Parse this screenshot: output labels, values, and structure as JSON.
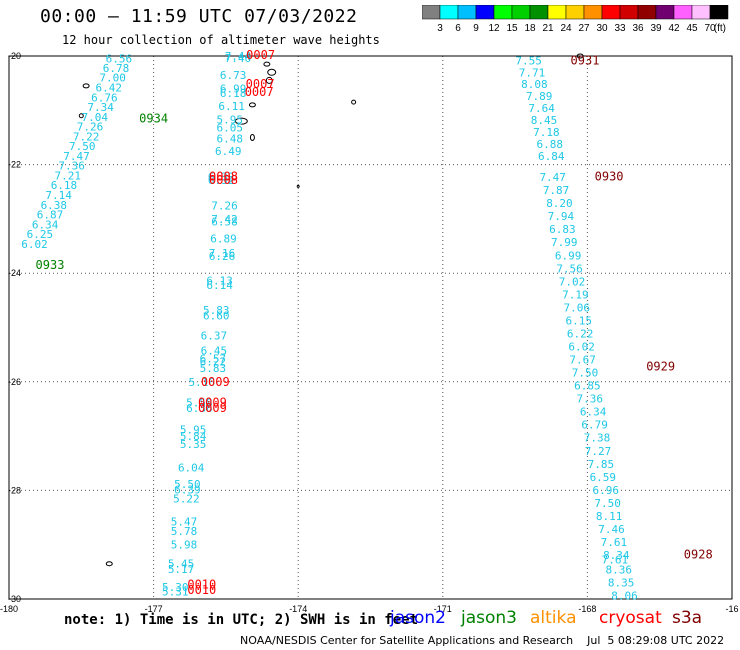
{
  "header": {
    "title": "00:00 – 11:59 UTC 07/03/2022",
    "subtitle": "12 hour collection of altimeter wave heights"
  },
  "colorbar": {
    "unit_label": "(ft)",
    "entries": [
      {
        "color": "#808080",
        "label": "3"
      },
      {
        "color": "#00ffff",
        "label": "6"
      },
      {
        "color": "#00bfff",
        "label": "9"
      },
      {
        "color": "#0000ff",
        "label": "12"
      },
      {
        "color": "#00ff00",
        "label": "15"
      },
      {
        "color": "#00d000",
        "label": "18"
      },
      {
        "color": "#009000",
        "label": "21"
      },
      {
        "color": "#ffff00",
        "label": "24"
      },
      {
        "color": "#ffd000",
        "label": "27"
      },
      {
        "color": "#ff9000",
        "label": "30"
      },
      {
        "color": "#ff0000",
        "label": "33"
      },
      {
        "color": "#d00000",
        "label": "36"
      },
      {
        "color": "#900000",
        "label": "39"
      },
      {
        "color": "#700070",
        "label": "42"
      },
      {
        "color": "#ff60ff",
        "label": "45"
      },
      {
        "color": "#ffc0ff",
        "label": "70"
      },
      {
        "color": "#000000",
        "label": ""
      }
    ]
  },
  "map": {
    "lon_ticks": [
      "-180",
      "-177",
      "-174",
      "-171",
      "-168",
      "-16"
    ],
    "lat_ticks": [
      "-20",
      "-22",
      "-24",
      "-26",
      "-28",
      "-30"
    ],
    "lon_range": [
      -180,
      -165
    ],
    "lat_range": [
      -30,
      -20
    ],
    "gridline_style": "dotted",
    "value_color": "#1ec8e6",
    "tracks": [
      {
        "satellite": "jason3",
        "label_color": "#008000",
        "time_labels": [
          {
            "text": "0934",
            "lon": -177.0,
            "lat": -21.15
          },
          {
            "text": "0933",
            "lon": -179.15,
            "lat": -23.85
          }
        ],
        "points": [
          {
            "text": "6.56",
            "lon": -177.72,
            "lat": -20.05
          },
          {
            "text": "6.78",
            "lon": -177.78,
            "lat": -20.22
          },
          {
            "text": "7.00",
            "lon": -177.85,
            "lat": -20.4
          },
          {
            "text": "6.42",
            "lon": -177.93,
            "lat": -20.58
          },
          {
            "text": "6.76",
            "lon": -178.02,
            "lat": -20.76
          },
          {
            "text": "7.34",
            "lon": -178.1,
            "lat": -20.94
          },
          {
            "text": "7.04",
            "lon": -178.22,
            "lat": -21.12
          },
          {
            "text": "7.26",
            "lon": -178.32,
            "lat": -21.3
          },
          {
            "text": "7.22",
            "lon": -178.4,
            "lat": -21.48
          },
          {
            "text": "7.50",
            "lon": -178.48,
            "lat": -21.66
          },
          {
            "text": "7.47",
            "lon": -178.6,
            "lat": -21.84
          },
          {
            "text": "7.36",
            "lon": -178.7,
            "lat": -22.02
          },
          {
            "text": "7.21",
            "lon": -178.78,
            "lat": -22.2
          },
          {
            "text": "6.18",
            "lon": -178.86,
            "lat": -22.38
          },
          {
            "text": "7.14",
            "lon": -178.97,
            "lat": -22.56
          },
          {
            "text": "6.38",
            "lon": -179.07,
            "lat": -22.74
          },
          {
            "text": "6.87",
            "lon": -179.15,
            "lat": -22.92
          },
          {
            "text": "6.34",
            "lon": -179.25,
            "lat": -23.1
          },
          {
            "text": "6.25",
            "lon": -179.36,
            "lat": -23.28
          },
          {
            "text": "6.02",
            "lon": -179.47,
            "lat": -23.46
          }
        ]
      },
      {
        "satellite": "cryosat",
        "label_color": "#ff0000",
        "time_labels": [
          {
            "text": "0007",
            "lon": -174.78,
            "lat": -19.98
          },
          {
            "text": "0007",
            "lon": -174.79,
            "lat": -20.52
          },
          {
            "text": "0007",
            "lon": -174.81,
            "lat": -20.66
          },
          {
            "text": "0008",
            "lon": -175.55,
            "lat": -22.22
          },
          {
            "text": "0008",
            "lon": -175.55,
            "lat": -22.28
          },
          {
            "text": "0009",
            "lon": -175.72,
            "lat": -26.0
          },
          {
            "text": "0009",
            "lon": -175.78,
            "lat": -26.38
          },
          {
            "text": "0009",
            "lon": -175.78,
            "lat": -26.48
          },
          {
            "text": "0010",
            "lon": -176.0,
            "lat": -29.73
          },
          {
            "text": "0010",
            "lon": -176.0,
            "lat": -29.83
          }
        ],
        "points": [
          {
            "text": "7.44",
            "lon": -175.25,
            "lat": -20.0
          },
          {
            "text": "7.46",
            "lon": -175.25,
            "lat": -20.04
          },
          {
            "text": "6.73",
            "lon": -175.35,
            "lat": -20.35
          },
          {
            "text": "6.99",
            "lon": -175.35,
            "lat": -20.6
          },
          {
            "text": "6.18",
            "lon": -175.35,
            "lat": -20.68
          },
          {
            "text": "6.11",
            "lon": -175.38,
            "lat": -20.92
          },
          {
            "text": "5.95",
            "lon": -175.42,
            "lat": -21.17
          },
          {
            "text": "6.05",
            "lon": -175.42,
            "lat": -21.32
          },
          {
            "text": "6.48",
            "lon": -175.42,
            "lat": -21.52
          },
          {
            "text": "6.49",
            "lon": -175.45,
            "lat": -21.75
          },
          {
            "text": "6.32",
            "lon": -175.6,
            "lat": -22.22
          },
          {
            "text": "6.32",
            "lon": -175.6,
            "lat": -22.28
          },
          {
            "text": "7.26",
            "lon": -175.53,
            "lat": -22.75
          },
          {
            "text": "7.42",
            "lon": -175.53,
            "lat": -23.0
          },
          {
            "text": "6.58",
            "lon": -175.53,
            "lat": -23.05
          },
          {
            "text": "6.89",
            "lon": -175.55,
            "lat": -23.36
          },
          {
            "text": "7.16",
            "lon": -175.58,
            "lat": -23.63
          },
          {
            "text": "6.26",
            "lon": -175.58,
            "lat": -23.68
          },
          {
            "text": "6.13",
            "lon": -175.63,
            "lat": -24.13
          },
          {
            "text": "6.14",
            "lon": -175.63,
            "lat": -24.22
          },
          {
            "text": "5.83",
            "lon": -175.7,
            "lat": -24.68
          },
          {
            "text": "6.60",
            "lon": -175.7,
            "lat": -24.78
          },
          {
            "text": "6.37",
            "lon": -175.75,
            "lat": -25.15
          },
          {
            "text": "6.45",
            "lon": -175.75,
            "lat": -25.42
          },
          {
            "text": "6.57",
            "lon": -175.77,
            "lat": -25.57
          },
          {
            "text": "6.22",
            "lon": -175.77,
            "lat": -25.63
          },
          {
            "text": "5.83",
            "lon": -175.77,
            "lat": -25.75
          },
          {
            "text": "5.16",
            "lon": -176.0,
            "lat": -26.0
          },
          {
            "text": "5.58",
            "lon": -176.05,
            "lat": -26.38
          },
          {
            "text": "6.36",
            "lon": -176.05,
            "lat": -26.48
          },
          {
            "text": "5.95",
            "lon": -176.18,
            "lat": -26.88
          },
          {
            "text": "5.84",
            "lon": -176.18,
            "lat": -27.0
          },
          {
            "text": "5.35",
            "lon": -176.18,
            "lat": -27.15
          },
          {
            "text": "6.04",
            "lon": -176.22,
            "lat": -27.58
          },
          {
            "text": "5.50",
            "lon": -176.3,
            "lat": -27.88
          },
          {
            "text": "6.39",
            "lon": -176.3,
            "lat": -27.98
          },
          {
            "text": "5.22",
            "lon": -176.32,
            "lat": -28.15
          },
          {
            "text": "5.47",
            "lon": -176.37,
            "lat": -28.57
          },
          {
            "text": "5.78",
            "lon": -176.37,
            "lat": -28.75
          },
          {
            "text": "5.98",
            "lon": -176.37,
            "lat": -29.0
          },
          {
            "text": "5.45",
            "lon": -176.43,
            "lat": -29.35
          },
          {
            "text": "5.17",
            "lon": -176.43,
            "lat": -29.45
          },
          {
            "text": "5.30",
            "lon": -176.55,
            "lat": -29.78
          },
          {
            "text": "5.31",
            "lon": -176.55,
            "lat": -29.86
          }
        ]
      },
      {
        "satellite": "s3a",
        "label_color": "#800000",
        "time_labels": [
          {
            "text": "0931",
            "lon": -168.05,
            "lat": -20.08
          },
          {
            "text": "0930",
            "lon": -167.55,
            "lat": -22.22
          },
          {
            "text": "0929",
            "lon": -166.48,
            "lat": -25.72
          },
          {
            "text": "0928",
            "lon": -165.7,
            "lat": -29.18
          }
        ],
        "points": [
          {
            "text": "7.55",
            "lon": -169.22,
            "lat": -20.08
          },
          {
            "text": "7.71",
            "lon": -169.15,
            "lat": -20.3
          },
          {
            "text": "8.08",
            "lon": -169.1,
            "lat": -20.52
          },
          {
            "text": "7.89",
            "lon": -169.0,
            "lat": -20.74
          },
          {
            "text": "7.64",
            "lon": -168.95,
            "lat": -20.96
          },
          {
            "text": "8.45",
            "lon": -168.9,
            "lat": -21.18
          },
          {
            "text": "7.18",
            "lon": -168.85,
            "lat": -21.4
          },
          {
            "text": "6.88",
            "lon": -168.78,
            "lat": -21.62
          },
          {
            "text": "6.84",
            "lon": -168.75,
            "lat": -21.84
          },
          {
            "text": "7.47",
            "lon": -168.72,
            "lat": -22.23
          },
          {
            "text": "7.87",
            "lon": -168.65,
            "lat": -22.47
          },
          {
            "text": "8.20",
            "lon": -168.58,
            "lat": -22.71
          },
          {
            "text": "7.94",
            "lon": -168.55,
            "lat": -22.95
          },
          {
            "text": "6.83",
            "lon": -168.52,
            "lat": -23.19
          },
          {
            "text": "7.99",
            "lon": -168.48,
            "lat": -23.43
          },
          {
            "text": "6.99",
            "lon": -168.4,
            "lat": -23.67
          },
          {
            "text": "7.56",
            "lon": -168.37,
            "lat": -23.91
          },
          {
            "text": "7.02",
            "lon": -168.32,
            "lat": -24.15
          },
          {
            "text": "7.19",
            "lon": -168.25,
            "lat": -24.39
          },
          {
            "text": "7.06",
            "lon": -168.22,
            "lat": -24.63
          },
          {
            "text": "6.15",
            "lon": -168.18,
            "lat": -24.87
          },
          {
            "text": "6.22",
            "lon": -168.15,
            "lat": -25.11
          },
          {
            "text": "6.02",
            "lon": -168.12,
            "lat": -25.35
          },
          {
            "text": "7.67",
            "lon": -168.1,
            "lat": -25.59
          },
          {
            "text": "7.50",
            "lon": -168.05,
            "lat": -25.83
          },
          {
            "text": "6.85",
            "lon": -168.0,
            "lat": -26.07
          },
          {
            "text": "7.36",
            "lon": -167.95,
            "lat": -26.31
          },
          {
            "text": "6.34",
            "lon": -167.88,
            "lat": -26.55
          },
          {
            "text": "6.79",
            "lon": -167.85,
            "lat": -26.79
          },
          {
            "text": "7.38",
            "lon": -167.8,
            "lat": -27.03
          },
          {
            "text": "7.27",
            "lon": -167.78,
            "lat": -27.27
          },
          {
            "text": "7.85",
            "lon": -167.72,
            "lat": -27.51
          },
          {
            "text": "6.59",
            "lon": -167.68,
            "lat": -27.75
          },
          {
            "text": "6.96",
            "lon": -167.62,
            "lat": -27.99
          },
          {
            "text": "7.50",
            "lon": -167.58,
            "lat": -28.23
          },
          {
            "text": "8.11",
            "lon": -167.55,
            "lat": -28.47
          },
          {
            "text": "7.46",
            "lon": -167.5,
            "lat": -28.71
          },
          {
            "text": "7.61",
            "lon": -167.45,
            "lat": -28.95
          },
          {
            "text": "8.34",
            "lon": -167.4,
            "lat": -29.19
          },
          {
            "text": "7.61",
            "lon": -167.43,
            "lat": -29.27
          },
          {
            "text": "8.36",
            "lon": -167.35,
            "lat": -29.46
          },
          {
            "text": "8.35",
            "lon": -167.3,
            "lat": -29.7
          },
          {
            "text": "8.06",
            "lon": -167.23,
            "lat": -29.94
          }
        ]
      }
    ]
  },
  "footer": {
    "note": "note: 1) Time is in UTC; 2) SWH is in feet",
    "credit": "NOAA/NESDIS Center for Satellite Applications and Research    Jul  5 08:29:08 UTC 2022",
    "legend": [
      {
        "name": "jason2",
        "color": "#0000ff"
      },
      {
        "name": "jason3",
        "color": "#008000"
      },
      {
        "name": "altika",
        "color": "#ff9000"
      },
      {
        "name": "cryosat",
        "color": "#ff0000"
      },
      {
        "name": "s3a",
        "color": "#800000"
      }
    ]
  }
}
